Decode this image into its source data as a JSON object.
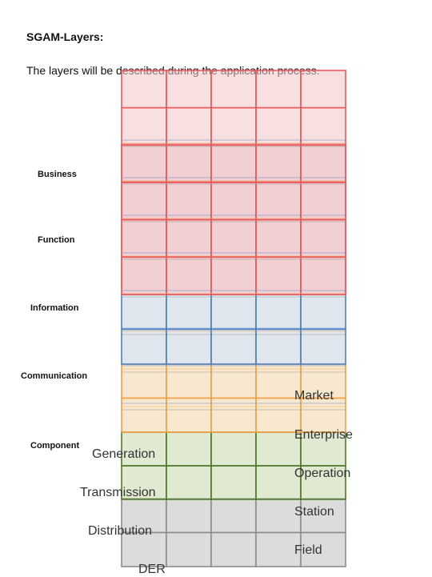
{
  "heading": "SGAM-Layers:",
  "intro": "The layers will be described during the application process.",
  "layers": [
    {
      "label": "Business",
      "color": "#e8585c",
      "fill": "#f2c4c6"
    },
    {
      "label": "Function",
      "color": "#e8585c",
      "fill": "#e2c0c8"
    },
    {
      "label": "Information",
      "color": "#4f7fbe",
      "fill": "#c5d2df"
    },
    {
      "label": "Communication",
      "color": "#f2a04a",
      "fill": "#f2d6a8"
    },
    {
      "label": "Component",
      "color": "#4f7a2a",
      "fill": "#c9d7a9"
    }
  ],
  "zones": [
    "Market",
    "Enterprise",
    "Operation",
    "Station",
    "Field"
  ],
  "domains": [
    "Generation",
    "Transmission",
    "Distribution",
    "DER"
  ],
  "base": {
    "color": "#8c8c8c",
    "fill": "#dcdcdc"
  }
}
